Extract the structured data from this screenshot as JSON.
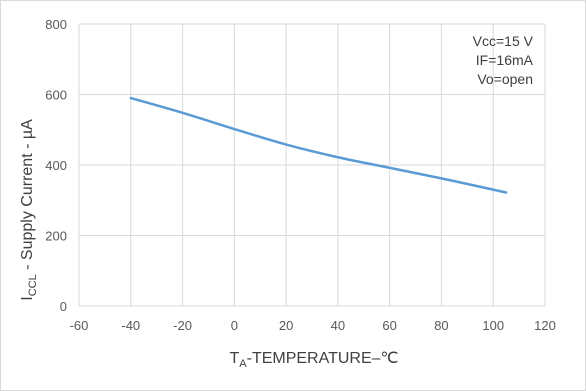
{
  "chart_data": {
    "type": "line",
    "xlabel": "T",
    "xlabel_sub": "A",
    "xlabel_suffix": "-TEMPERATURE–℃",
    "ylabel": "I",
    "ylabel_sub": "CCL",
    "ylabel_suffix": " - Supply Current - µA",
    "xlim": [
      -60,
      120
    ],
    "ylim": [
      0,
      800
    ],
    "x_ticks": [
      "-60",
      "-40",
      "-20",
      "0",
      "20",
      "40",
      "60",
      "80",
      "100",
      "120"
    ],
    "y_ticks": [
      "0",
      "200",
      "400",
      "600",
      "800"
    ],
    "grid": true,
    "legend_placement": "top-right",
    "conditions": [
      "Vcc=15 V",
      "IF=16mA",
      "Vo=open"
    ],
    "line_color": "#5b9bd5",
    "series": [
      {
        "x": [
          -40,
          -20,
          0,
          20,
          40,
          60,
          80,
          105
        ],
        "y": [
          590,
          548,
          502,
          458,
          422,
          392,
          362,
          322
        ]
      }
    ]
  }
}
